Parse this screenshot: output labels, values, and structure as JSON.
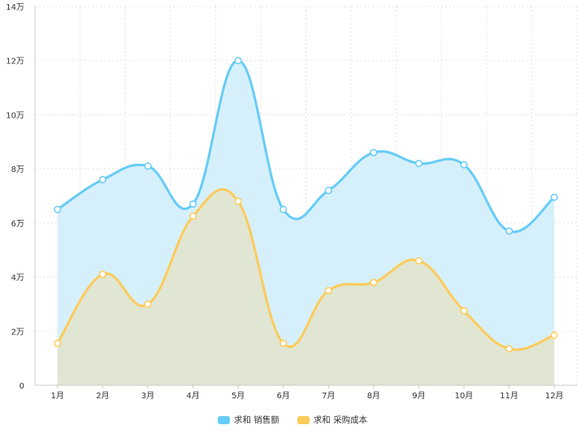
{
  "chart_data": {
    "type": "area",
    "categories": [
      "1月",
      "2月",
      "3月",
      "4月",
      "5月",
      "6月",
      "7月",
      "8月",
      "9月",
      "10月",
      "11月",
      "12月"
    ],
    "y_ticks": [
      "0",
      "2万",
      "4万",
      "6万",
      "8万",
      "10万",
      "12万",
      "14万"
    ],
    "ylim": [
      0,
      140000
    ],
    "grid": true,
    "legend_position": "bottom",
    "series": [
      {
        "name": "求和 销售额",
        "color": "#66ccf6",
        "fill": "#d6f0fb",
        "values": [
          65000,
          76000,
          81000,
          67000,
          120000,
          65000,
          72000,
          86000,
          82000,
          81500,
          57000,
          69500
        ]
      },
      {
        "name": "求和 采购成本",
        "color": "#fdcb5a",
        "fill": "#e2e5d1",
        "values": [
          15500,
          41000,
          30000,
          62500,
          68000,
          15500,
          35000,
          38000,
          46000,
          27500,
          13500,
          18500
        ]
      }
    ]
  }
}
